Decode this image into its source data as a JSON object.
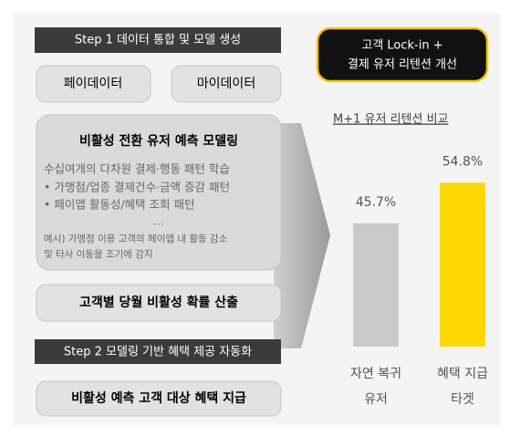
{
  "left": {
    "step1": "Step 1 데이터 통합 및 모델 생성",
    "sources": [
      "페이데이터",
      "마이데이터"
    ],
    "model": {
      "title": "비활성 전환 유저 예측 모델링",
      "lines": [
        "수십여개의 다차원 결제·행동 패턴 학습",
        "• 가맹점/업종 결제건수·금액 증감 패턴",
        "• 페이앱 활동성/혜택 조회 패턴",
        "…"
      ],
      "example": [
        "예시) 가맹점 이용 고객의 페이앱 내 활동 감소",
        "및 타사 이동을 조기에 감지"
      ]
    },
    "probability": "고객별 당월 비활성 확률 산출",
    "step2": "Step 2 모델링 기반 혜택 제공 자동화",
    "action": "비활성 예측 고객 대상 혜택 지급"
  },
  "goal": [
    "고객 Lock-in +",
    "결제 유저 리텐션 개선"
  ],
  "chart_data": {
    "type": "bar",
    "title": "M+1 유저 리텐션 비교",
    "categories": [
      [
        "자연 복귀",
        "유저"
      ],
      [
        "혜택 지급",
        "타겟"
      ]
    ],
    "values": [
      45.7,
      54.8
    ],
    "value_labels": [
      "45.7%",
      "54.8%"
    ],
    "colors": [
      "#c9c9c9",
      "#ffd700"
    ],
    "ylim": [
      18,
      60
    ]
  }
}
